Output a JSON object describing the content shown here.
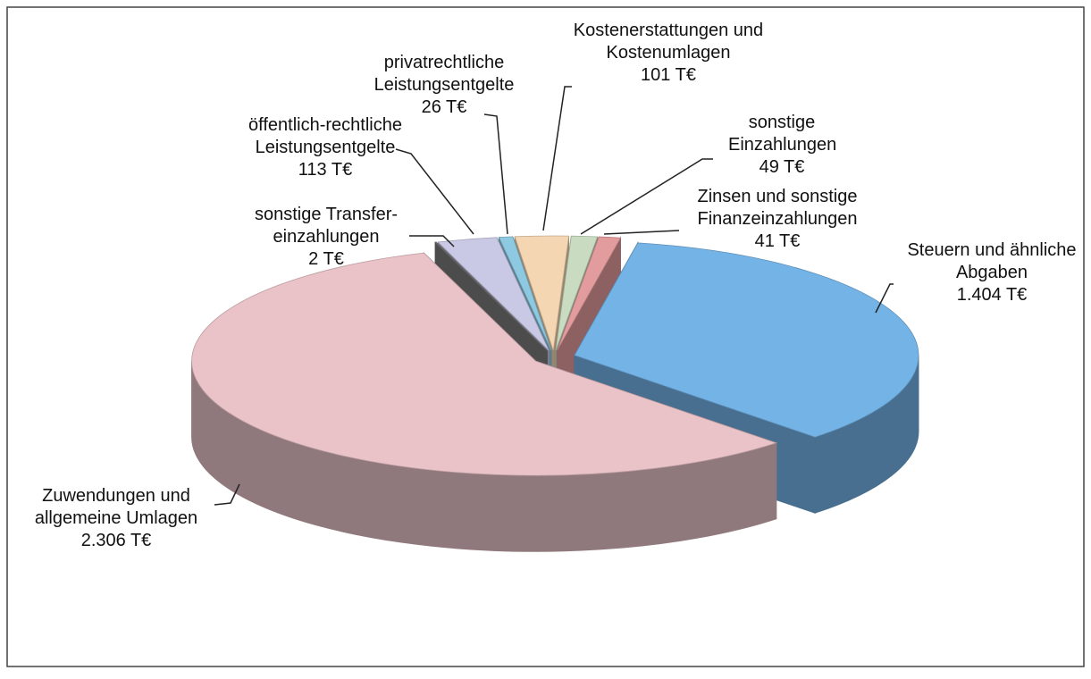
{
  "chart_data": {
    "type": "pie3d",
    "categories": [
      "Steuern und ähnliche Abgaben",
      "Zuwendungen und allgemeine Umlagen",
      "sonstige Transfer-einzahlungen",
      "öffentlich-rechtliche Leistungsentgelte",
      "privatrechtliche Leistungsentgelte",
      "Kostenerstattungen und Kostenumlagen",
      "sonstige Einzahlungen",
      "Zinsen und sonstige Finanzeinzahlungen"
    ],
    "values": [
      1404,
      2306,
      2,
      113,
      26,
      101,
      49,
      41
    ],
    "value_labels": [
      "1.404 T€",
      "2.306 T€",
      "2 T€",
      "113 T€",
      "26 T€",
      "101 T€",
      "49 T€",
      "41 T€"
    ],
    "colors": [
      "#74b3e6",
      "#e9c3c8",
      "#7a7a7a",
      "#c9c9e6",
      "#8ec9e2",
      "#f4d6b2",
      "#c9dcc1",
      "#e39c9e"
    ]
  }
}
